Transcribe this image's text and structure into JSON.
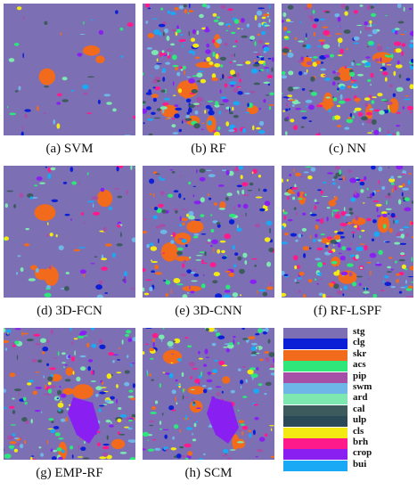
{
  "panels": [
    {
      "id": "svm",
      "caption": "(a) SVM",
      "density": 0.03
    },
    {
      "id": "rf",
      "caption": "(b) RF",
      "density": 0.55
    },
    {
      "id": "nn",
      "caption": "(c) NN",
      "density": 0.5
    },
    {
      "id": "fcn",
      "caption": "(d) 3D-FCN",
      "density": 0.12
    },
    {
      "id": "cnn",
      "caption": "(e) 3D-CNN",
      "density": 0.35
    },
    {
      "id": "lspf",
      "caption": "(f) RF-LSPF",
      "density": 0.55
    },
    {
      "id": "emp",
      "caption": "(g) EMP-RF",
      "density": 0.4
    },
    {
      "id": "scm",
      "caption": "(h) SCM",
      "density": 0.38
    }
  ],
  "legend": [
    {
      "label": "stg",
      "color": "#7c6fb4"
    },
    {
      "label": "clg",
      "color": "#0b1fd6"
    },
    {
      "label": "skr",
      "color": "#f26a1b"
    },
    {
      "label": "acs",
      "color": "#2ee67a"
    },
    {
      "label": "pip",
      "color": "#a64fa6"
    },
    {
      "label": "swm",
      "color": "#6fb6e8"
    },
    {
      "label": "ard",
      "color": "#7de8b0"
    },
    {
      "label": "cal",
      "color": "#3d5a5c"
    },
    {
      "label": "ulp",
      "color": "#2b4a57"
    },
    {
      "label": "cls",
      "color": "#f2ea12"
    },
    {
      "label": "brh",
      "color": "#ff1a8c"
    },
    {
      "label": "crop",
      "color": "#8a1ff2"
    },
    {
      "label": "bui",
      "color": "#19a9f5"
    }
  ]
}
